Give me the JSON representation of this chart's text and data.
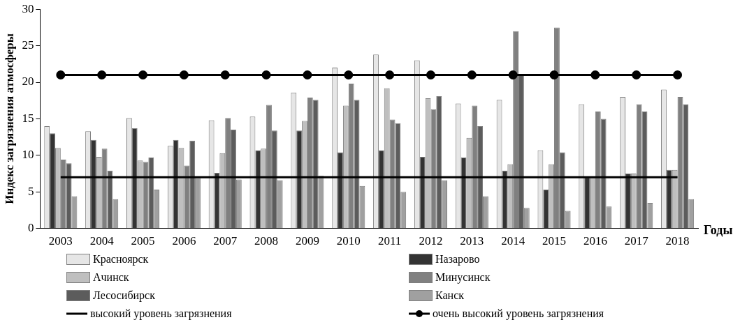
{
  "chart_data": {
    "type": "bar",
    "ylabel": "Индекс загрязнения атмосферы",
    "xlabel": "Годы",
    "categories": [
      "2003",
      "2004",
      "2005",
      "2006",
      "2007",
      "2008",
      "2009",
      "2010",
      "2011",
      "2012",
      "2013",
      "2014",
      "2015",
      "2016",
      "2017",
      "2018"
    ],
    "series": [
      {
        "name": "Красноярск",
        "color": "#e6e6e6",
        "values": [
          14,
          13.3,
          15.1,
          11.3,
          14.8,
          15.3,
          18.6,
          22,
          23.8,
          23,
          17.1,
          17.6,
          10.7,
          17,
          18,
          19
        ]
      },
      {
        "name": "Назарово",
        "color": "#333333",
        "values": [
          13,
          12.1,
          13.7,
          12.1,
          7.6,
          10.7,
          13.4,
          10.4,
          10.7,
          9.8,
          9.7,
          7.9,
          5.3,
          7,
          7.5,
          8
        ]
      },
      {
        "name": "Ачинск",
        "color": "#bfbfbf",
        "values": [
          11,
          9.8,
          9.3,
          11,
          10.3,
          10.9,
          14.7,
          16.8,
          19.2,
          17.8,
          12.4,
          8.8,
          8.8,
          7,
          7.5,
          8
        ]
      },
      {
        "name": "Минусинск",
        "color": "#808080",
        "values": [
          9.4,
          10.9,
          9.1,
          8.6,
          15.1,
          16.9,
          17.9,
          19.8,
          14.9,
          16.3,
          16.8,
          27,
          27.5,
          16,
          17,
          18
        ]
      },
      {
        "name": "Лесосибирск",
        "color": "#5c5c5c",
        "values": [
          8.9,
          7.9,
          9.7,
          12,
          13.5,
          13.4,
          17.6,
          17.6,
          14.4,
          18.1,
          14,
          21,
          10.4,
          15,
          16,
          17
        ]
      },
      {
        "name": "Канск",
        "color": "#a0a0a0",
        "values": [
          4.4,
          4,
          5.3,
          6.9,
          6.7,
          6.6,
          7.2,
          5.8,
          5,
          6.6,
          4.4,
          2.8,
          2.4,
          3,
          3.5,
          4
        ]
      },
      {
        "name": "высокий уровень загрязнения",
        "type": "line",
        "color": "#000000",
        "marker": "none",
        "values": [
          7,
          7,
          7,
          7,
          7,
          7,
          7,
          7,
          7,
          7,
          7,
          7,
          7,
          7,
          7,
          7
        ]
      },
      {
        "name": "очень высокий уровень загрязнения",
        "type": "line",
        "color": "#000000",
        "marker": "circle",
        "values": [
          21,
          21,
          21,
          21,
          21,
          21,
          21,
          21,
          21,
          21,
          21,
          21,
          21,
          21,
          21,
          21
        ]
      }
    ],
    "ylim": [
      0,
      30
    ],
    "yticks": [
      0,
      5,
      10,
      15,
      20,
      25,
      30
    ],
    "grid": false,
    "legend": "bottom"
  }
}
